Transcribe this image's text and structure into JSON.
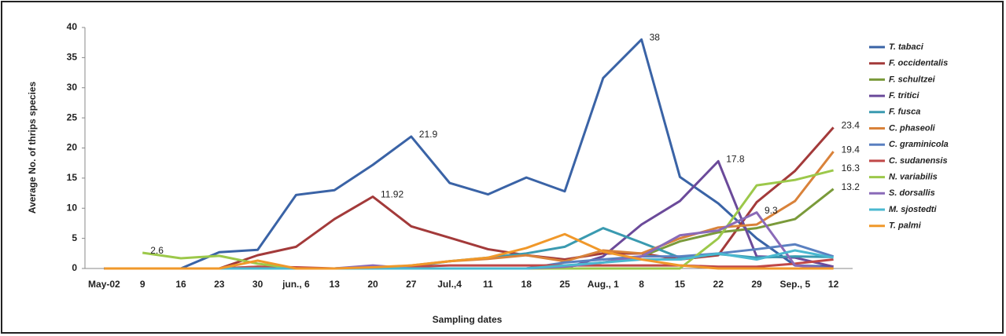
{
  "chart_data": {
    "type": "line",
    "y_label": "Average No. of thrips species",
    "x_label": "Sampling dates",
    "categories": [
      "May-02",
      "9",
      "16",
      "23",
      "30",
      "jun., 6",
      "13",
      "20",
      "27",
      "Jul.,4",
      "11",
      "18",
      "25",
      "Aug., 1",
      "8",
      "15",
      "22",
      "29",
      "Sep., 5",
      "12"
    ],
    "ylim": [
      0,
      40
    ],
    "yticks": [
      0,
      5,
      10,
      15,
      20,
      25,
      30,
      35,
      40
    ],
    "grid": false,
    "legend": "right",
    "series": [
      {
        "name": "T. tabaci",
        "color": "#3a63a6",
        "values": [
          0,
          0,
          0,
          2.7,
          3.1,
          12.2,
          13,
          17.2,
          21.9,
          14.2,
          12.3,
          15.1,
          12.8,
          31.6,
          38,
          15.2,
          10.8,
          5,
          0.5,
          0.3
        ],
        "value_labels": [
          null,
          null,
          null,
          null,
          null,
          null,
          null,
          null,
          "21.9",
          null,
          null,
          null,
          null,
          null,
          "38",
          null,
          null,
          null,
          null,
          null
        ]
      },
      {
        "name": "F. occidentalis",
        "color": "#a33a3a",
        "values": [
          0,
          0,
          0,
          0,
          2.2,
          3.6,
          8.2,
          11.92,
          7,
          5.1,
          3.2,
          2.2,
          1.5,
          2.5,
          2.5,
          1.5,
          2.2,
          11,
          16.2,
          23.4
        ],
        "value_labels": [
          null,
          null,
          null,
          null,
          null,
          null,
          null,
          "11.92",
          null,
          null,
          null,
          null,
          null,
          null,
          null,
          null,
          null,
          null,
          null,
          "23.4"
        ]
      },
      {
        "name": "F. schultzei",
        "color": "#7a9a3a",
        "values": [
          0,
          0,
          0,
          0,
          0,
          0,
          0,
          0,
          0,
          0,
          0,
          0,
          0.3,
          1,
          2,
          4.5,
          6,
          6.7,
          8.2,
          13.2
        ],
        "value_labels": [
          null,
          null,
          null,
          null,
          null,
          null,
          null,
          null,
          null,
          null,
          null,
          null,
          null,
          null,
          null,
          null,
          null,
          null,
          null,
          "13.2"
        ]
      },
      {
        "name": "F.  tritici",
        "color": "#6b4a9a",
        "values": [
          0,
          0,
          0,
          0,
          0,
          0,
          0,
          0,
          0,
          0,
          0,
          0,
          0,
          2,
          7.3,
          11.2,
          17.8,
          2,
          1.8,
          0.3
        ],
        "value_labels": [
          null,
          null,
          null,
          null,
          null,
          null,
          null,
          null,
          null,
          null,
          null,
          null,
          null,
          null,
          null,
          null,
          "17.8",
          null,
          null,
          null
        ]
      },
      {
        "name": "F. fusca",
        "color": "#3a9ab0",
        "values": [
          0,
          0,
          0,
          0,
          0,
          0,
          0,
          0.3,
          0.3,
          1.2,
          1.8,
          2.5,
          3.6,
          6.7,
          4.3,
          1.8,
          2.4,
          1.8,
          2,
          1.9
        ]
      },
      {
        "name": "C. phaseoli",
        "color": "#d9823a",
        "values": [
          0,
          0,
          0,
          0,
          0.3,
          0,
          0,
          0,
          0.5,
          1.2,
          1.6,
          2.2,
          1.2,
          3,
          2.5,
          5,
          6.8,
          7.3,
          11.2,
          19.4
        ],
        "value_labels": [
          null,
          null,
          null,
          null,
          null,
          null,
          null,
          null,
          null,
          null,
          null,
          null,
          null,
          null,
          null,
          null,
          null,
          null,
          null,
          "19.4"
        ]
      },
      {
        "name": "C. graminicola",
        "color": "#5a80c0",
        "values": [
          0,
          0,
          0,
          0,
          0,
          0,
          0,
          0,
          0,
          0,
          0,
          0,
          1,
          1.5,
          2,
          2,
          2.5,
          3.2,
          4,
          2
        ]
      },
      {
        "name": "C. sudanensis",
        "color": "#c04848",
        "values": [
          0,
          0,
          0,
          0,
          0.3,
          0.2,
          0,
          0.2,
          0.3,
          0.5,
          0.5,
          0.5,
          0.5,
          0.5,
          0.5,
          0.5,
          0.3,
          0.3,
          0.8,
          1.5
        ]
      },
      {
        "name": "N. variabilis",
        "color": "#9cc84a",
        "values": [
          null,
          2.6,
          1.7,
          2.1,
          0.8,
          0,
          0,
          0,
          0,
          0,
          0,
          0,
          0,
          0,
          0,
          0,
          5,
          13.8,
          14.7,
          16.3
        ],
        "value_labels": [
          null,
          "2.6",
          null,
          null,
          null,
          null,
          null,
          null,
          null,
          null,
          null,
          null,
          null,
          null,
          null,
          null,
          null,
          null,
          null,
          "16.3"
        ]
      },
      {
        "name": "S. dorsallis",
        "color": "#8a6ab8",
        "values": [
          0,
          0,
          0,
          0,
          0,
          0,
          0,
          0.5,
          0,
          0,
          0,
          0,
          0.3,
          1,
          2,
          5.5,
          6.3,
          9.3,
          0.5,
          0
        ],
        "value_labels": [
          null,
          null,
          null,
          null,
          null,
          null,
          null,
          null,
          null,
          null,
          null,
          null,
          null,
          null,
          null,
          null,
          null,
          "9.3",
          null,
          null
        ]
      },
      {
        "name": "M. sjostedti",
        "color": "#4ab8d0",
        "values": [
          0,
          0,
          0,
          0,
          0,
          0,
          0,
          0,
          0,
          0,
          0,
          0,
          0.5,
          1,
          1.5,
          1.5,
          2.5,
          1.5,
          3,
          1.8
        ]
      },
      {
        "name": "T. palmi",
        "color": "#f0982a",
        "values": [
          0,
          0,
          0,
          0,
          1.3,
          0,
          0,
          0.2,
          0.5,
          1.2,
          1.8,
          3.4,
          5.7,
          2.8,
          1.5,
          0.5,
          0,
          0,
          0,
          0
        ]
      }
    ]
  }
}
